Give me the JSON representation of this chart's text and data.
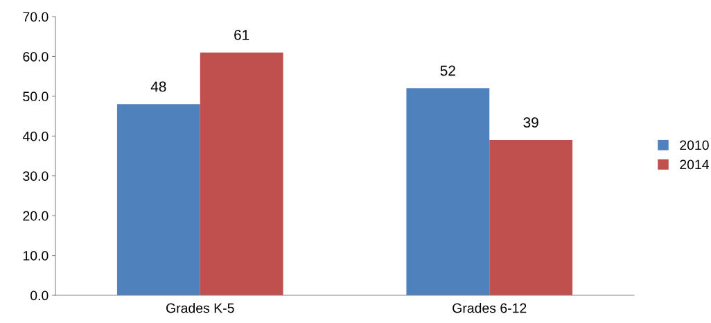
{
  "chart_data": {
    "type": "bar",
    "categories": [
      "Grades K-5",
      "Grades 6-12"
    ],
    "series": [
      {
        "name": "2010",
        "color": "#4f81bd",
        "values": [
          48,
          52
        ]
      },
      {
        "name": "2014",
        "color": "#c0504d",
        "values": [
          61,
          39
        ]
      }
    ],
    "ylim": [
      0,
      70
    ],
    "yticks": [
      {
        "value": 0,
        "label": "0.0"
      },
      {
        "value": 10,
        "label": "10.0"
      },
      {
        "value": 20,
        "label": "20.0"
      },
      {
        "value": 30,
        "label": "30.0"
      },
      {
        "value": 40,
        "label": "40.0"
      },
      {
        "value": 50,
        "label": "50.0"
      },
      {
        "value": 60,
        "label": "60.0"
      },
      {
        "value": 70,
        "label": "70.0"
      }
    ],
    "data_labels": true,
    "legend": "right",
    "grid": false
  }
}
